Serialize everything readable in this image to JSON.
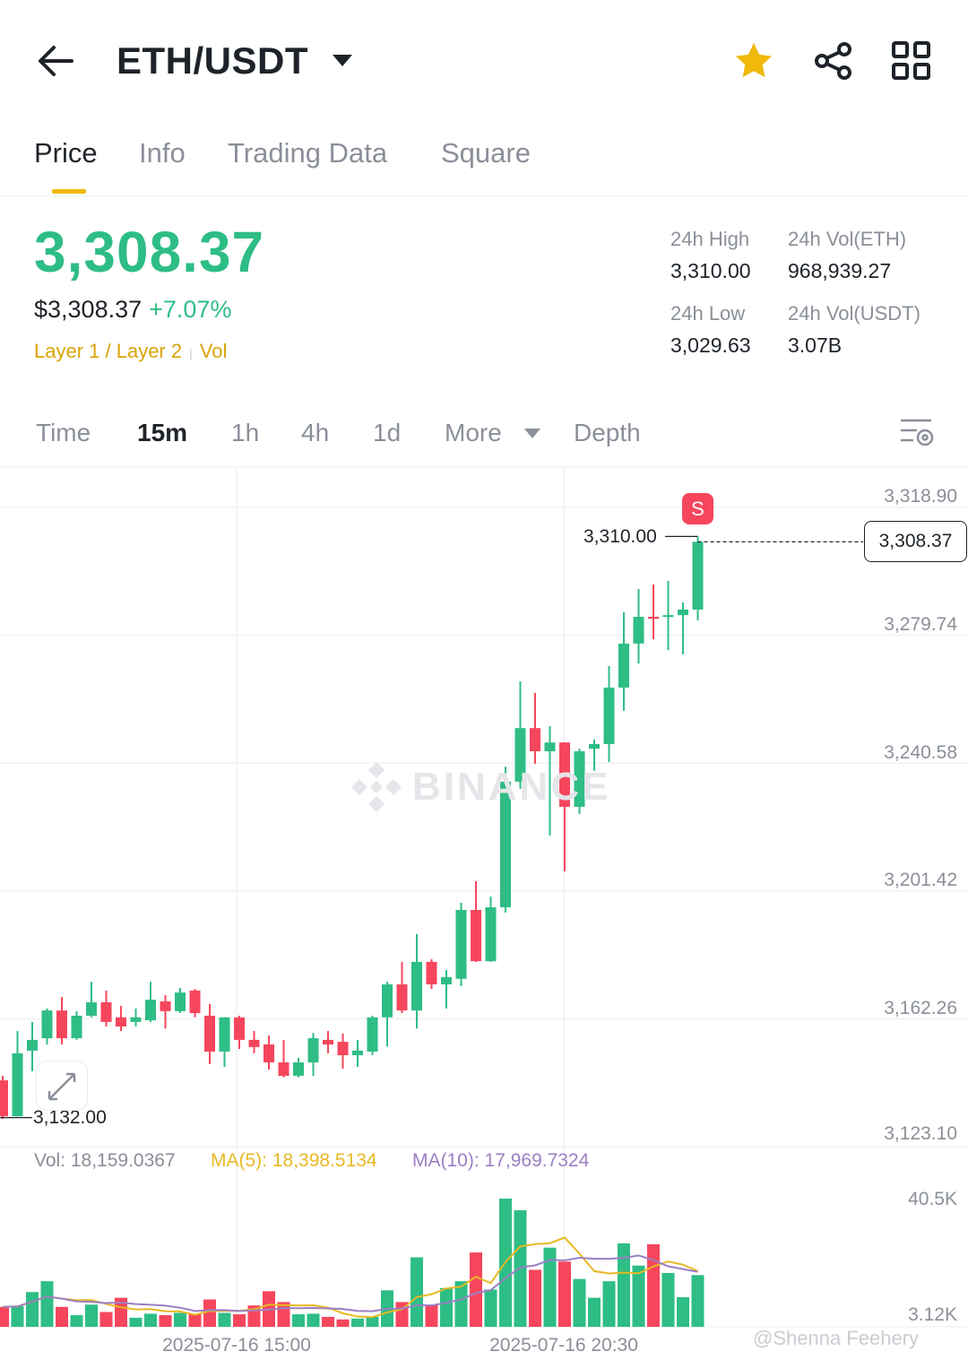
{
  "header": {
    "title": "ETH/USDT",
    "icons": [
      "back-arrow-icon",
      "dropdown-caret-icon",
      "star-icon",
      "share-icon",
      "grid-icon"
    ],
    "star_color": "#f0b90b"
  },
  "tabs": [
    {
      "label": "Price",
      "active": true
    },
    {
      "label": "Info"
    },
    {
      "label": "Trading Data"
    },
    {
      "label": "Square"
    }
  ],
  "ticker": {
    "price": "3,308.37",
    "usd_price": "$3,308.37",
    "change": "+7.07%",
    "tags": [
      "Layer 1 / Layer 2",
      "Vol"
    ],
    "stats": {
      "high_label": "24h High",
      "high": "3,310.00",
      "low_label": "24h Low",
      "low": "3,029.63",
      "vol_eth_label": "24h Vol(ETH)",
      "vol_eth": "968,939.27",
      "vol_usdt_label": "24h Vol(USDT)",
      "vol_usdt": "3.07B"
    }
  },
  "intervals": {
    "items": [
      "Time",
      "15m",
      "1h",
      "4h",
      "1d",
      "More",
      "Depth"
    ],
    "active": "15m"
  },
  "colors": {
    "up": "#2ebd85",
    "down": "#f6465d",
    "ma5": "#e8b923",
    "ma10": "#9b7fc4"
  },
  "chart_data": {
    "type": "candlestick",
    "watermark": "BINANCE",
    "y_ticks": [
      "3,318.90",
      "3,279.74",
      "3,240.58",
      "3,201.42",
      "3,162.26",
      "3,123.10"
    ],
    "ylim": [
      3123.1,
      3318.9
    ],
    "x_ticks": [
      "2025-07-16 15:00",
      "2025-07-16 20:30"
    ],
    "high_marker": "3,310.00",
    "low_marker": "3,132.00",
    "last_price": "3,308.37",
    "sell_badge": "S",
    "ohlc": [
      [
        3143.4,
        3144.8,
        3131.6,
        3132.4
      ],
      [
        3132.4,
        3158.5,
        3132.4,
        3151.7
      ],
      [
        3152.5,
        3161.3,
        3146.2,
        3155.8
      ],
      [
        3156.3,
        3165.4,
        3154.4,
        3164.8
      ],
      [
        3164.8,
        3168.9,
        3154.4,
        3156.3
      ],
      [
        3156.3,
        3164.6,
        3155.8,
        3163.2
      ],
      [
        3163.2,
        3173.6,
        3162.7,
        3167.3
      ],
      [
        3167.3,
        3170.9,
        3159.9,
        3161.3
      ],
      [
        3162.7,
        3166.2,
        3158.5,
        3159.9
      ],
      [
        3161.3,
        3165.4,
        3159.9,
        3162.7
      ],
      [
        3161.8,
        3173.6,
        3161.3,
        3168.1
      ],
      [
        3167.6,
        3169.5,
        3159.3,
        3164.6
      ],
      [
        3164.6,
        3171.7,
        3164.0,
        3170.3
      ],
      [
        3170.9,
        3171.4,
        3162.7,
        3164.0
      ],
      [
        3163.2,
        3166.8,
        3148.4,
        3152.2
      ],
      [
        3152.2,
        3162.7,
        3147.5,
        3162.7
      ],
      [
        3162.7,
        3163.2,
        3153.0,
        3155.8
      ],
      [
        3155.8,
        3158.5,
        3151.7,
        3153.6
      ],
      [
        3154.4,
        3157.1,
        3146.7,
        3148.9
      ],
      [
        3148.9,
        3155.8,
        3144.3,
        3144.8
      ],
      [
        3144.8,
        3150.3,
        3144.3,
        3148.9
      ],
      [
        3148.9,
        3157.9,
        3144.8,
        3156.3
      ],
      [
        3155.8,
        3158.5,
        3151.7,
        3154.4
      ],
      [
        3155.2,
        3157.7,
        3147.0,
        3151.1
      ],
      [
        3151.1,
        3155.8,
        3147.5,
        3152.5
      ],
      [
        3152.2,
        3163.2,
        3151.1,
        3162.7
      ],
      [
        3162.7,
        3173.6,
        3153.8,
        3172.8
      ],
      [
        3172.8,
        3179.7,
        3164.0,
        3164.8
      ],
      [
        3164.8,
        3188.2,
        3159.3,
        3179.7
      ],
      [
        3179.7,
        3180.5,
        3171.4,
        3172.8
      ],
      [
        3172.8,
        3177.2,
        3165.4,
        3175.0
      ],
      [
        3174.5,
        3197.8,
        3172.3,
        3195.6
      ],
      [
        3195.6,
        3204.4,
        3179.7,
        3179.9
      ],
      [
        3179.9,
        3199.7,
        3179.7,
        3196.4
      ],
      [
        3196.4,
        3239.5,
        3194.8,
        3234.9
      ],
      [
        3234.9,
        3265.6,
        3232.7,
        3251.3
      ],
      [
        3251.3,
        3262.1,
        3240.4,
        3244.2
      ],
      [
        3244.2,
        3251.9,
        3218.4,
        3246.9
      ],
      [
        3246.9,
        3246.9,
        3207.4,
        3227.2
      ],
      [
        3227.2,
        3245.0,
        3225.0,
        3244.2
      ],
      [
        3245.0,
        3247.8,
        3238.2,
        3246.4
      ],
      [
        3246.4,
        3270.3,
        3240.9,
        3263.7
      ],
      [
        3263.7,
        3286.8,
        3256.6,
        3277.2
      ],
      [
        3277.2,
        3293.9,
        3271.1,
        3285.4
      ],
      [
        3285.4,
        3295.3,
        3278.5,
        3284.8
      ],
      [
        3285.4,
        3296.4,
        3275.2,
        3285.9
      ],
      [
        3285.9,
        3289.8,
        3273.9,
        3287.6
      ],
      [
        3287.6,
        3310.0,
        3284.3,
        3308.37
      ]
    ],
    "volume": {
      "legend": {
        "vol": "Vol: 18,159.0367",
        "ma5": "MA(5): 18,398.5134",
        "ma10": "MA(10): 17,969.7324"
      },
      "y_ticks": [
        "40.5K",
        "3.12K"
      ],
      "unit": "K",
      "values": [
        7.0,
        7.3,
        12.2,
        16.0,
        7.0,
        4.1,
        7.8,
        5.2,
        10.2,
        3.2,
        4.6,
        4.1,
        4.9,
        4.4,
        9.6,
        4.9,
        4.4,
        7.5,
        12.5,
        8.7,
        4.4,
        4.6,
        3.5,
        2.6,
        2.9,
        3.5,
        12.8,
        8.7,
        24.4,
        7.8,
        13.6,
        16.0,
        26.1,
        13.1,
        45.0,
        40.9,
        20.0,
        27.8,
        22.9,
        16.8,
        10.2,
        16.0,
        29.3,
        21.5,
        29.0,
        18.9,
        10.4,
        18.16
      ]
    }
  },
  "watermark_credit": "@Shenna Feehery"
}
